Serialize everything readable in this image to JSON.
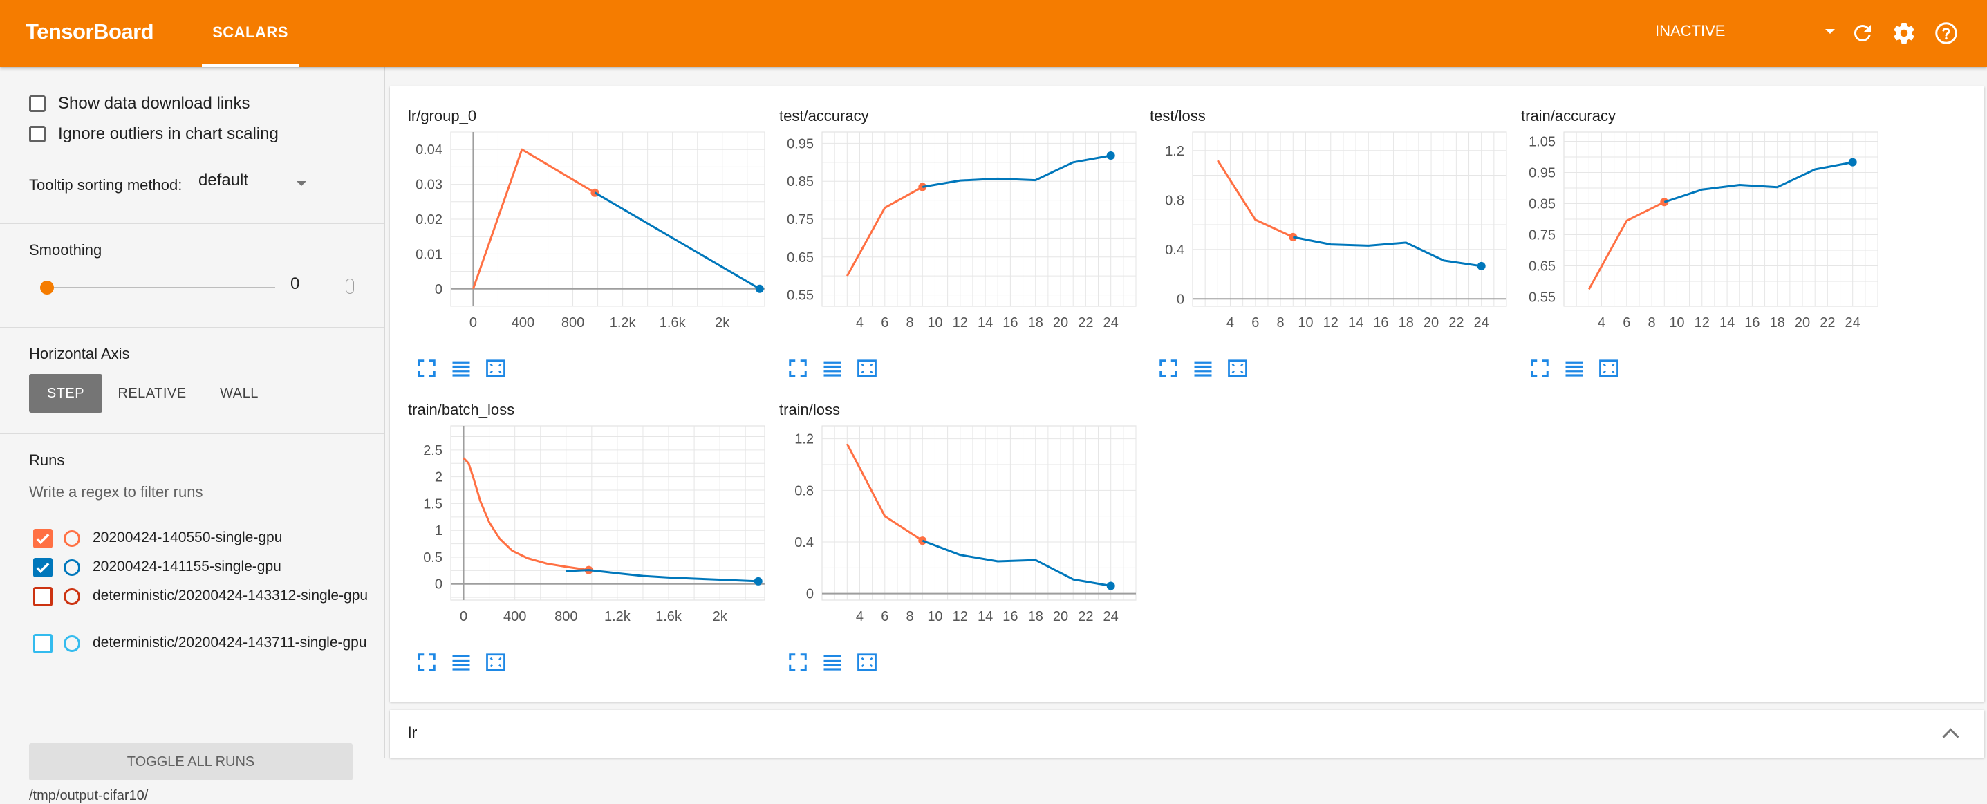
{
  "header": {
    "brand": "TensorBoard",
    "tab": "SCALARS",
    "status_select": "INACTIVE",
    "icons": [
      "refresh-icon",
      "settings-icon",
      "help-icon"
    ]
  },
  "sidebar": {
    "show_download_links": "Show data download links",
    "ignore_outliers": "Ignore outliers in chart scaling",
    "tooltip_label": "Tooltip sorting method:",
    "tooltip_value": "default",
    "smoothing_title": "Smoothing",
    "smoothing_value": "0",
    "haxis_title": "Horizontal Axis",
    "haxis": {
      "step": "STEP",
      "relative": "RELATIVE",
      "wall": "WALL",
      "selected": "STEP"
    },
    "runs_title": "Runs",
    "regex_placeholder": "Write a regex to filter runs",
    "runs": [
      {
        "name": "20200424-140550-single-gpu",
        "checked": true,
        "color": "#ff7043"
      },
      {
        "name": "20200424-141155-single-gpu",
        "checked": true,
        "color": "#0077bb"
      },
      {
        "name": "deterministic/20200424-143312-single-gpu",
        "checked": false,
        "color": "#cc3311"
      },
      {
        "name": "deterministic/20200424-143711-single-gpu",
        "checked": false,
        "color": "#33bbee"
      }
    ],
    "toggle_all": "TOGGLE ALL RUNS",
    "logdir": "/tmp/output-cifar10/"
  },
  "collapsed_group": {
    "title": "lr"
  },
  "chart_data": [
    {
      "type": "line",
      "title": "lr/group_0",
      "xlabel": "",
      "ylabel": "",
      "x_ticks": [
        "0",
        "400",
        "800",
        "1.2k",
        "1.6k",
        "2k"
      ],
      "y_ticks": [
        "0",
        "0.01",
        "0.02",
        "0.03",
        "0.04"
      ],
      "xlim": [
        -180,
        2340
      ],
      "ylim": [
        -0.005,
        0.045
      ],
      "series": [
        {
          "x": [
            0,
            391,
            977
          ],
          "y": [
            0,
            0.04,
            0.0276
          ]
        },
        {
          "x": [
            977,
            2300
          ],
          "y": [
            0.0276,
            0
          ]
        }
      ]
    },
    {
      "type": "line",
      "title": "test/accuracy",
      "xlabel": "",
      "ylabel": "",
      "x_ticks": [
        "4",
        "6",
        "8",
        "10",
        "12",
        "14",
        "16",
        "18",
        "20",
        "22",
        "24"
      ],
      "y_ticks": [
        "0.55",
        "0.65",
        "0.75",
        "0.85",
        "0.95"
      ],
      "xlim": [
        1,
        26
      ],
      "ylim": [
        0.52,
        0.98
      ],
      "series": [
        {
          "x": [
            3,
            6,
            9
          ],
          "y": [
            0.6,
            0.78,
            0.835
          ]
        },
        {
          "x": [
            9,
            12,
            15,
            18,
            21,
            24
          ],
          "y": [
            0.835,
            0.852,
            0.857,
            0.853,
            0.9,
            0.918
          ]
        }
      ]
    },
    {
      "type": "line",
      "title": "test/loss",
      "xlabel": "",
      "ylabel": "",
      "x_ticks": [
        "4",
        "6",
        "8",
        "10",
        "12",
        "14",
        "16",
        "18",
        "20",
        "22",
        "24"
      ],
      "y_ticks": [
        "0",
        "0.4",
        "0.8",
        "1.2"
      ],
      "xlim": [
        1,
        26
      ],
      "ylim": [
        -0.06,
        1.35
      ],
      "series": [
        {
          "x": [
            3,
            6,
            9
          ],
          "y": [
            1.12,
            0.64,
            0.5
          ]
        },
        {
          "x": [
            9,
            12,
            15,
            18,
            21,
            24
          ],
          "y": [
            0.5,
            0.44,
            0.43,
            0.455,
            0.31,
            0.265
          ]
        }
      ]
    },
    {
      "type": "line",
      "title": "train/accuracy",
      "xlabel": "",
      "ylabel": "",
      "x_ticks": [
        "4",
        "6",
        "8",
        "10",
        "12",
        "14",
        "16",
        "18",
        "20",
        "22",
        "24"
      ],
      "y_ticks": [
        "0.55",
        "0.65",
        "0.75",
        "0.85",
        "0.95",
        "1.05"
      ],
      "xlim": [
        1,
        26
      ],
      "ylim": [
        0.52,
        1.08
      ],
      "series": [
        {
          "x": [
            3,
            6,
            9
          ],
          "y": [
            0.575,
            0.795,
            0.855
          ]
        },
        {
          "x": [
            9,
            12,
            15,
            18,
            21,
            24
          ],
          "y": [
            0.855,
            0.895,
            0.91,
            0.903,
            0.96,
            0.983
          ]
        }
      ]
    },
    {
      "type": "line",
      "title": "train/batch_loss",
      "xlabel": "",
      "ylabel": "",
      "x_ticks": [
        "0",
        "400",
        "800",
        "1.2k",
        "1.6k",
        "2k"
      ],
      "y_ticks": [
        "0",
        "0.5",
        "1",
        "1.5",
        "2",
        "2.5"
      ],
      "xlim": [
        -100,
        2350
      ],
      "ylim": [
        -0.3,
        2.95
      ],
      "series": [
        {
          "x": [
            0,
            40,
            80,
            130,
            200,
            280,
            380,
            500,
            650,
            800,
            977
          ],
          "y": [
            2.35,
            2.25,
            1.95,
            1.55,
            1.15,
            0.85,
            0.62,
            0.48,
            0.38,
            0.32,
            0.26
          ]
        },
        {
          "x": [
            800,
            977,
            1200,
            1400,
            1600,
            1800,
            2000,
            2300
          ],
          "y": [
            0.24,
            0.26,
            0.2,
            0.15,
            0.12,
            0.1,
            0.08,
            0.05
          ]
        }
      ]
    },
    {
      "type": "line",
      "title": "train/loss",
      "xlabel": "",
      "ylabel": "",
      "x_ticks": [
        "4",
        "6",
        "8",
        "10",
        "12",
        "14",
        "16",
        "18",
        "20",
        "22",
        "24"
      ],
      "y_ticks": [
        "0",
        "0.4",
        "0.8",
        "1.2"
      ],
      "xlim": [
        1,
        26
      ],
      "ylim": [
        -0.05,
        1.3
      ],
      "series": [
        {
          "x": [
            3,
            6,
            9
          ],
          "y": [
            1.16,
            0.6,
            0.41
          ]
        },
        {
          "x": [
            9,
            12,
            15,
            18,
            21,
            24
          ],
          "y": [
            0.41,
            0.3,
            0.25,
            0.26,
            0.11,
            0.06
          ]
        }
      ]
    }
  ]
}
